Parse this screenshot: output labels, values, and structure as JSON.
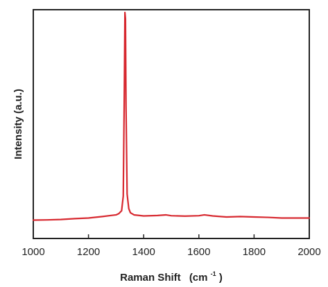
{
  "chart_data": {
    "type": "line",
    "title": "",
    "xlabel": "Raman Shift",
    "xlabel_unit_base": "(cm",
    "xlabel_unit_exp": "-1",
    "xlabel_unit_close": ")",
    "ylabel": "Intensity (a.u.)",
    "xlim": [
      1000,
      2000
    ],
    "ylim": [
      0,
      1
    ],
    "x_ticks": [
      "1000",
      "1200",
      "1400",
      "1600",
      "1800",
      "2000"
    ],
    "y_ticks_shown": false,
    "grid": false,
    "legend": "none",
    "series": [
      {
        "color": "#d7282f",
        "x": [
          1000,
          1050,
          1100,
          1150,
          1200,
          1250,
          1300,
          1310,
          1320,
          1326,
          1330,
          1332,
          1334,
          1336,
          1340,
          1346,
          1352,
          1365,
          1400,
          1450,
          1480,
          1500,
          1550,
          1600,
          1620,
          1650,
          1700,
          1750,
          1800,
          1850,
          1900,
          1950,
          2000
        ],
        "y": [
          0.005,
          0.006,
          0.008,
          0.012,
          0.015,
          0.022,
          0.03,
          0.036,
          0.05,
          0.12,
          0.65,
          1.0,
          0.97,
          0.55,
          0.13,
          0.06,
          0.04,
          0.03,
          0.025,
          0.027,
          0.03,
          0.026,
          0.024,
          0.026,
          0.03,
          0.025,
          0.02,
          0.022,
          0.02,
          0.018,
          0.015,
          0.015,
          0.015
        ]
      }
    ]
  }
}
